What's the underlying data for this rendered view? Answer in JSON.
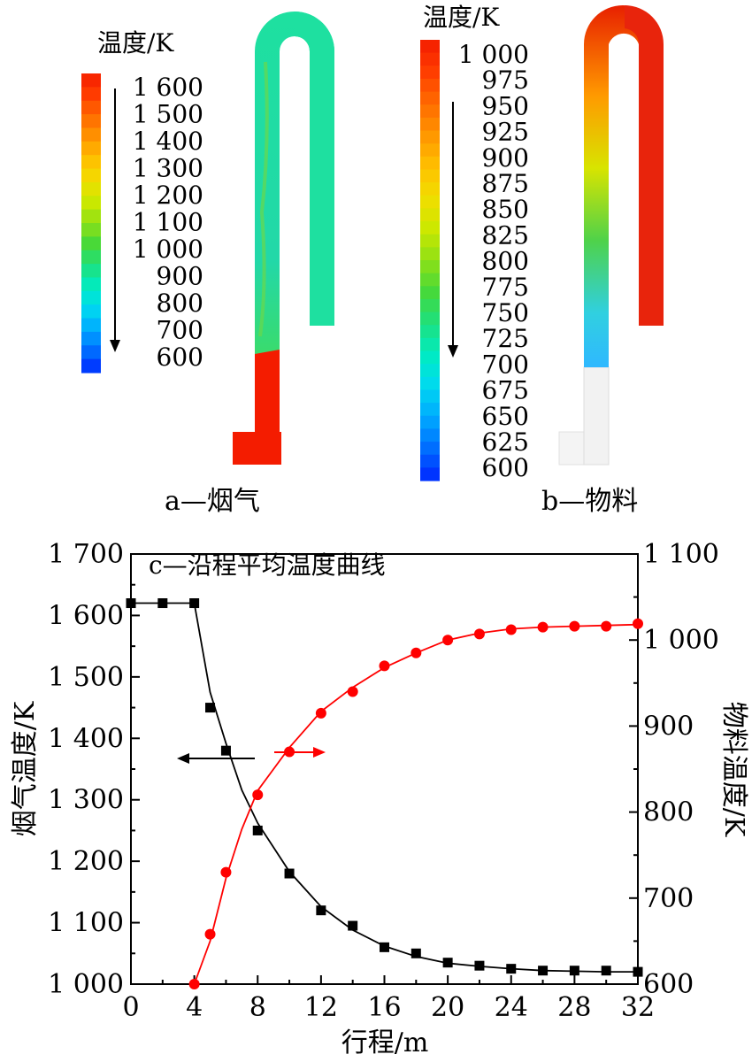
{
  "panel_a": {
    "legend_title": "温度/K",
    "legend_labels": [
      "1 600",
      "1 500",
      "1 400",
      "1 300",
      "1 200",
      "1 100",
      "1 000",
      "900",
      "800",
      "700",
      "600"
    ],
    "caption": "a—烟气"
  },
  "panel_b": {
    "legend_title": "温度/K",
    "legend_labels": [
      "1 000",
      "975",
      "950",
      "925",
      "900",
      "875",
      "850",
      "825",
      "800",
      "775",
      "750",
      "725",
      "700",
      "675",
      "650",
      "625",
      "600"
    ],
    "caption": "b—物料"
  },
  "colormap": [
    "#0026ff",
    "#006cff",
    "#00a9ff",
    "#00d9f0",
    "#00ecc2",
    "#1ee07e",
    "#46d93a",
    "#8fe016",
    "#cce800",
    "#f2dd00",
    "#ffbf00",
    "#ff9500",
    "#ff6a00",
    "#ff3d00",
    "#f41c00"
  ],
  "chart_data": {
    "type": "line",
    "title": "c—沿程平均温度曲线",
    "xlabel": "行程/m",
    "ylabel": "烟气温度/K",
    "y2label": "物料温度/K",
    "xlim": [
      0,
      32
    ],
    "ylim": [
      1000,
      1700
    ],
    "y2lim": [
      600,
      1100
    ],
    "xticks": [
      "0",
      "4",
      "8",
      "12",
      "16",
      "20",
      "24",
      "28",
      "32"
    ],
    "yticks": [
      "1 000",
      "1 100",
      "1 200",
      "1 300",
      "1 400",
      "1 500",
      "1 600",
      "1 700"
    ],
    "y2ticks": [
      "600",
      "700",
      "800",
      "900",
      "1 000",
      "1 100"
    ],
    "series": [
      {
        "axis": "left",
        "color": "#000000",
        "marker": "square",
        "x": [
          0,
          2,
          4,
          5,
          6,
          8,
          10,
          12,
          14,
          16,
          18,
          20,
          22,
          24,
          26,
          28,
          30,
          32
        ],
        "y": [
          1620,
          1620,
          1620,
          1450,
          1380,
          1250,
          1180,
          1120,
          1095,
          1060,
          1050,
          1035,
          1030,
          1025,
          1022,
          1022,
          1022,
          1020
        ],
        "fit_x": [
          0,
          2,
          4,
          5,
          6,
          7,
          8,
          10,
          12,
          14,
          16,
          18,
          20,
          22,
          24,
          26,
          28,
          30,
          32
        ],
        "fit_y": [
          1620,
          1620,
          1620,
          1475,
          1392,
          1316,
          1262,
          1183,
          1126,
          1088,
          1062,
          1045,
          1034,
          1029,
          1025,
          1022,
          1021,
          1020,
          1020
        ]
      },
      {
        "axis": "right",
        "color": "#ff0000",
        "marker": "circle",
        "x": [
          4,
          5,
          6,
          8,
          10,
          12,
          14,
          16,
          18,
          20,
          22,
          24,
          26,
          28,
          30,
          32
        ],
        "y": [
          600,
          658,
          730,
          820,
          870,
          915,
          940,
          970,
          985,
          1000,
          1007,
          1012,
          1015,
          1016,
          1016,
          1019
        ],
        "fit_x": [
          4,
          5,
          6,
          7,
          8,
          9,
          10,
          12,
          14,
          16,
          18,
          20,
          22,
          24,
          26,
          28,
          30,
          32
        ],
        "fit_y": [
          600,
          650,
          723,
          780,
          825,
          850,
          875,
          917,
          945,
          968,
          985,
          1000,
          1008,
          1013,
          1015,
          1016,
          1017,
          1018
        ]
      }
    ]
  }
}
